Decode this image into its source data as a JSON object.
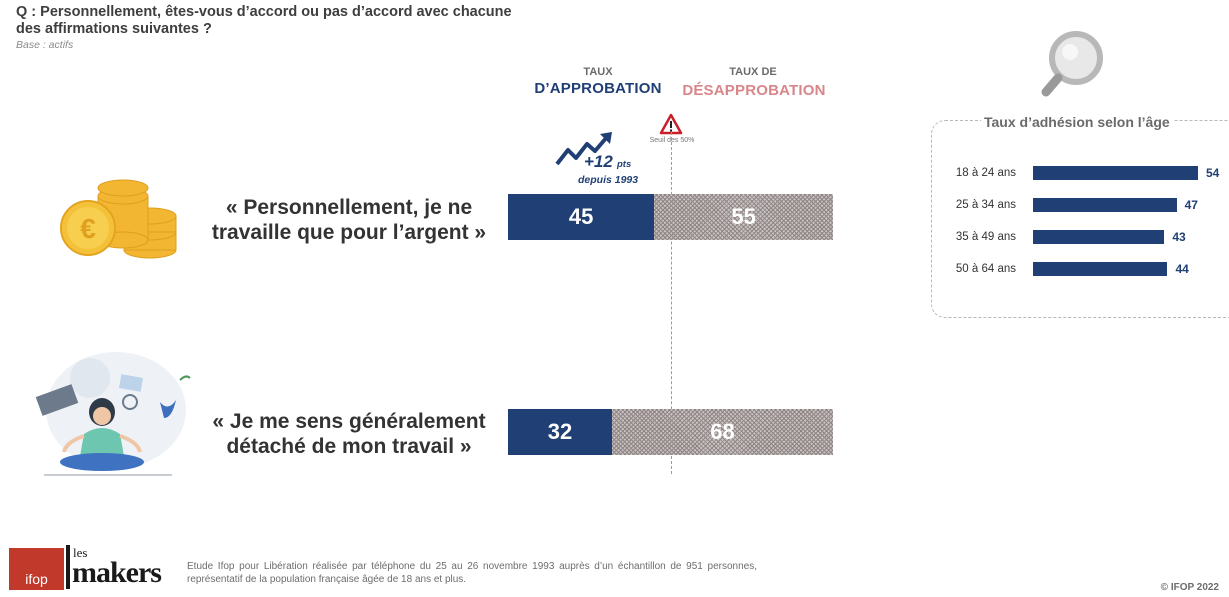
{
  "question": {
    "text": "Q : Personnellement, êtes-vous d’accord ou pas d’accord avec chacune des affirmations suivantes ?",
    "base": "Base : actifs"
  },
  "headers": {
    "approval_small": "TAUX",
    "approval_big": "D’APPROBATION",
    "disapproval_small": "TAUX DE",
    "disapproval_big": "DÉSAPPROBATION"
  },
  "threshold_label": "Seuil des 50%",
  "trend": {
    "value": "+12",
    "unit": "pts",
    "since": "depuis 1993"
  },
  "chart_data": [
    {
      "type": "bar",
      "stacked": true,
      "orientation": "horizontal",
      "categories": [
        "« Personnellement, je ne travaille que pour l’argent »",
        "« Je me sens généralement détaché de mon travail »"
      ],
      "series": [
        {
          "name": "TAUX D’APPROBATION",
          "values": [
            45,
            32
          ],
          "color": "#203f74"
        },
        {
          "name": "TAUX DE DÉSAPPROBATION",
          "values": [
            55,
            68
          ],
          "color": "#c9c2c2"
        }
      ],
      "xlim": [
        0,
        100
      ],
      "reference_line": 50
    },
    {
      "type": "bar",
      "orientation": "horizontal",
      "title": "Taux d’adhésion selon l’âge",
      "categories": [
        "18 à 24 ans",
        "25 à 34 ans",
        "35 à 49 ans",
        "50 à 64 ans"
      ],
      "values": [
        54,
        47,
        43,
        44
      ],
      "color": "#203f74"
    }
  ],
  "statements": [
    {
      "line1": "« Personnellement, je ne",
      "line2": "travaille que pour l’argent »"
    },
    {
      "line1": "« Je me sens généralement",
      "line2": "détaché de mon travail »"
    }
  ],
  "footer": {
    "logo_ifop": "ifop",
    "logo_les": "les",
    "logo_makers": "makers",
    "text": "Etude Ifop pour Libération réalisée par téléphone du 25 au 26 novembre 1993 auprès d’un échantillon de 951 personnes, représentatif de la population française âgée de 18 ans et plus.",
    "copyright": "© IFOP 2022"
  },
  "icons": [
    "coins-euro-icon",
    "meditation-illustration",
    "magnifier-icon",
    "warning-icon",
    "trend-arrow-icon"
  ]
}
